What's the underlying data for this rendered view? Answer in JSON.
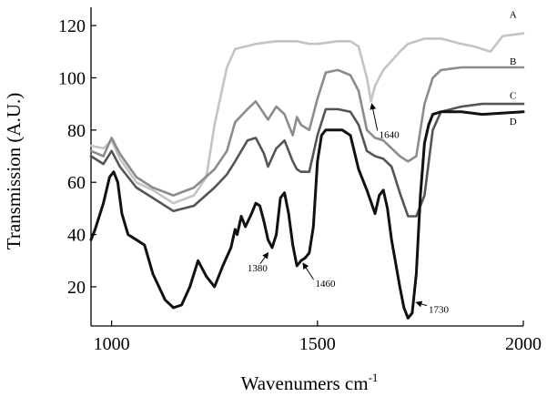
{
  "chart_data": {
    "type": "line",
    "xlabel": "Wavenumers cm",
    "xlabel_sup": "-1",
    "ylabel": "Transmission (A.U.)",
    "xlim": [
      950,
      2000
    ],
    "ylim": [
      5,
      127
    ],
    "x_ticks": [
      1000,
      1500,
      2000
    ],
    "y_ticks": [
      20,
      40,
      60,
      80,
      100,
      120
    ],
    "grid": false,
    "series": [
      {
        "name": "A",
        "color": "#c4c4c4",
        "x": [
          950,
          980,
          1000,
          1020,
          1060,
          1100,
          1150,
          1200,
          1230,
          1250,
          1280,
          1300,
          1350,
          1400,
          1450,
          1480,
          1500,
          1550,
          1580,
          1600,
          1620,
          1630,
          1640,
          1660,
          1700,
          1720,
          1760,
          1800,
          1850,
          1880,
          1920,
          1950,
          2000
        ],
        "y": [
          74,
          73,
          76,
          69,
          60,
          57,
          52,
          55,
          62,
          82,
          104,
          111,
          113,
          114,
          114,
          113,
          113,
          114,
          114,
          112,
          100,
          91,
          97,
          103,
          110,
          113,
          115,
          115,
          113,
          112,
          110,
          116,
          117
        ]
      },
      {
        "name": "B",
        "color": "#8c8c8c",
        "x": [
          950,
          980,
          1000,
          1020,
          1060,
          1100,
          1150,
          1200,
          1250,
          1280,
          1300,
          1330,
          1350,
          1380,
          1400,
          1420,
          1440,
          1450,
          1460,
          1480,
          1500,
          1520,
          1550,
          1580,
          1600,
          1620,
          1640,
          1660,
          1700,
          1720,
          1740,
          1760,
          1780,
          1800,
          1850,
          1900,
          2000
        ],
        "y": [
          72,
          70,
          77,
          71,
          62,
          58,
          55,
          58,
          65,
          72,
          83,
          88,
          91,
          84,
          89,
          86,
          78,
          85,
          82,
          80,
          92,
          102,
          103,
          101,
          95,
          80,
          77,
          76,
          70,
          68,
          70,
          90,
          100,
          103,
          104,
          104,
          104
        ]
      },
      {
        "name": "C",
        "color": "#555555",
        "x": [
          950,
          980,
          1000,
          1020,
          1060,
          1100,
          1150,
          1200,
          1250,
          1280,
          1300,
          1330,
          1350,
          1370,
          1380,
          1400,
          1420,
          1440,
          1450,
          1460,
          1480,
          1500,
          1520,
          1550,
          1580,
          1600,
          1620,
          1640,
          1660,
          1680,
          1700,
          1720,
          1740,
          1760,
          1780,
          1800,
          1850,
          1900,
          2000
        ],
        "y": [
          70,
          67,
          72,
          66,
          58,
          54,
          49,
          51,
          58,
          63,
          68,
          76,
          77,
          71,
          66,
          73,
          76,
          68,
          65,
          64,
          64,
          78,
          88,
          88,
          87,
          82,
          72,
          70,
          69,
          66,
          56,
          47,
          47,
          55,
          80,
          87,
          89,
          90,
          90
        ]
      },
      {
        "name": "D",
        "color": "#111111",
        "x": [
          950,
          960,
          980,
          995,
          1005,
          1015,
          1025,
          1040,
          1060,
          1080,
          1100,
          1130,
          1150,
          1170,
          1190,
          1210,
          1230,
          1250,
          1270,
          1290,
          1300,
          1305,
          1315,
          1325,
          1340,
          1350,
          1360,
          1370,
          1380,
          1390,
          1400,
          1410,
          1420,
          1430,
          1440,
          1450,
          1460,
          1470,
          1480,
          1490,
          1500,
          1510,
          1520,
          1540,
          1560,
          1580,
          1600,
          1620,
          1640,
          1650,
          1660,
          1670,
          1680,
          1700,
          1710,
          1720,
          1730,
          1740,
          1750,
          1760,
          1770,
          1780,
          1800,
          1850,
          1900,
          2000
        ],
        "y": [
          38,
          42,
          52,
          62,
          64,
          60,
          48,
          40,
          38,
          36,
          25,
          15,
          12,
          13,
          20,
          30,
          24,
          20,
          28,
          35,
          42,
          40,
          47,
          43,
          48,
          52,
          51,
          45,
          38,
          35,
          40,
          54,
          56,
          48,
          36,
          28,
          30,
          31,
          33,
          43,
          68,
          78,
          80,
          80,
          80,
          78,
          65,
          57,
          48,
          55,
          57,
          50,
          38,
          20,
          12,
          8,
          10,
          25,
          55,
          75,
          82,
          86,
          87,
          87,
          86,
          87
        ]
      }
    ],
    "series_tags": [
      {
        "name": "A",
        "x": 1975,
        "y": 123
      },
      {
        "name": "B",
        "x": 1975,
        "y": 105
      },
      {
        "name": "C",
        "x": 1975,
        "y": 92
      },
      {
        "name": "D",
        "x": 1975,
        "y": 82
      }
    ],
    "annotations": [
      {
        "text": "1640",
        "x": 1650,
        "y": 77,
        "point_x": 1632,
        "point_y": 90
      },
      {
        "text": "1380",
        "x": 1330,
        "y": 26,
        "point_x": 1380,
        "point_y": 33
      },
      {
        "text": "1460",
        "x": 1495,
        "y": 20,
        "point_x": 1465,
        "point_y": 29
      },
      {
        "text": "1730",
        "x": 1770,
        "y": 10,
        "point_x": 1740,
        "point_y": 14
      }
    ]
  }
}
